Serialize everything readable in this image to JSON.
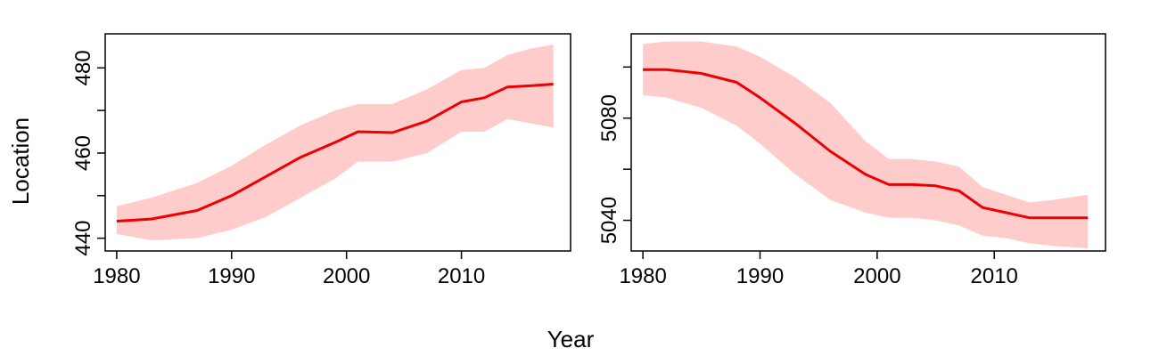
{
  "figure": {
    "xlabel": "Year",
    "ylabel": "Location"
  },
  "chart_data": [
    {
      "type": "line",
      "x": [
        1980,
        1983,
        1987,
        1990,
        1993,
        1996,
        1999,
        2001,
        2004,
        2007,
        2010,
        2012,
        2014,
        2016,
        2018
      ],
      "series": [
        {
          "values": [
            444,
            444.5,
            446.5,
            450,
            454.5,
            459,
            462.5,
            465,
            464.8,
            467.5,
            472,
            473,
            475.5,
            475.8,
            476.2
          ],
          "lower": [
            441,
            439.5,
            440,
            442,
            445,
            449.5,
            454,
            458,
            458,
            460,
            465,
            465,
            468,
            467,
            466
          ],
          "upper": [
            447.5,
            449.5,
            453,
            457,
            462,
            466.5,
            470,
            471.5,
            471.5,
            475,
            479.5,
            480,
            483,
            484.5,
            485.5
          ],
          "color": "#ee0000",
          "band_color": "#ffcccc"
        }
      ],
      "xlim": [
        1979,
        2019.5
      ],
      "ylim": [
        437,
        488
      ],
      "xticks": [
        1980,
        1990,
        2000,
        2010
      ],
      "yticks": [
        440,
        460,
        480
      ],
      "yminor_ticks": [
        450,
        470
      ]
    },
    {
      "type": "line",
      "x": [
        1980,
        1982,
        1985,
        1988,
        1990,
        1993,
        1996,
        1999,
        2001,
        2003,
        2005,
        2007,
        2009,
        2011,
        2013,
        2015,
        2018
      ],
      "series": [
        {
          "values": [
            5099,
            5099,
            5097.5,
            5094,
            5088,
            5078,
            5067,
            5058,
            5054,
            5054,
            5053.5,
            5051.5,
            5045,
            5043,
            5041,
            5041,
            5041
          ],
          "lower": [
            5089,
            5088,
            5084,
            5077,
            5070,
            5058,
            5048,
            5043,
            5041,
            5041,
            5040,
            5038,
            5034,
            5033,
            5031,
            5030,
            5029
          ],
          "upper": [
            5109,
            5110,
            5110,
            5108,
            5104,
            5096,
            5086,
            5071,
            5064,
            5064,
            5063,
            5061,
            5053,
            5050,
            5047,
            5048,
            5050
          ],
          "color": "#ee0000",
          "band_color": "#ffcccc"
        }
      ],
      "xlim": [
        1979,
        2019.5
      ],
      "ylim": [
        5028,
        5113
      ],
      "xticks": [
        1980,
        1990,
        2000,
        2010
      ],
      "yticks": [
        5040,
        5080
      ],
      "yminor_ticks": [
        5060,
        5100
      ]
    }
  ]
}
